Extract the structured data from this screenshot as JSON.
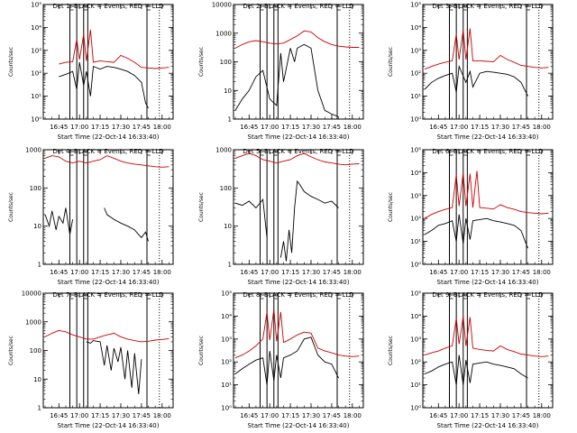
{
  "common": {
    "ylabel": "Counts/sec",
    "xlabel": "Start Time (22-Oct-14 16:33:40)",
    "x_ticks": [
      "16:45",
      "17:00",
      "17:15",
      "17:30",
      "17:45",
      "18:00"
    ],
    "series_colors": {
      "events": "#000000",
      "lld": "#cc0000"
    }
  },
  "chart_data": [
    {
      "type": "line",
      "title": "Det 1: BLACK = Events, RED = LLD",
      "ylog": true,
      "ylim": [
        1,
        100000
      ],
      "y_ticks": [
        "10⁰",
        "10¹",
        "10²",
        "10³",
        "10⁴",
        "10⁵"
      ],
      "y_tick_vals": [
        1,
        10,
        100,
        1000,
        10000,
        100000
      ],
      "series": [
        {
          "name": "Events",
          "x": [
            "16:45",
            "16:50",
            "16:55",
            "16:58",
            "17:00",
            "17:03",
            "17:05",
            "17:08",
            "17:10",
            "17:15",
            "17:20",
            "17:25",
            "17:30",
            "17:35",
            "17:40",
            "17:45",
            "17:48",
            "17:50"
          ],
          "values": [
            70,
            90,
            120,
            20,
            300,
            30,
            120,
            10,
            200,
            150,
            200,
            180,
            150,
            120,
            80,
            40,
            5,
            3
          ]
        },
        {
          "name": "LLD",
          "x": [
            "16:45",
            "16:50",
            "16:55",
            "16:58",
            "17:00",
            "17:03",
            "17:05",
            "17:08",
            "17:10",
            "17:15",
            "17:20",
            "17:25",
            "17:30",
            "17:35",
            "17:40",
            "17:45",
            "17:50",
            "17:55",
            "18:00",
            "18:05"
          ],
          "values": [
            250,
            300,
            320,
            3000,
            400,
            5000,
            350,
            8000,
            300,
            350,
            320,
            300,
            600,
            450,
            300,
            180,
            170,
            160,
            170,
            180
          ]
        }
      ]
    },
    {
      "type": "line",
      "title": "Det 2: BLACK = Events, RED = LLD",
      "ylog": true,
      "ylim": [
        1,
        10000
      ],
      "y_ticks": [
        "1",
        "10",
        "100",
        "1000",
        "10000"
      ],
      "y_tick_vals": [
        1,
        10,
        100,
        1000,
        10000
      ],
      "series": [
        {
          "name": "Events",
          "x": [
            "16:35",
            "16:40",
            "16:45",
            "16:50",
            "16:55",
            "17:00",
            "17:05",
            "17:08",
            "17:10",
            "17:15",
            "17:18",
            "17:20",
            "17:25",
            "17:30",
            "17:35",
            "17:40",
            "17:45",
            "17:50"
          ],
          "values": [
            2,
            5,
            10,
            30,
            50,
            5,
            3,
            200,
            20,
            300,
            100,
            300,
            400,
            300,
            10,
            2,
            1.5,
            1.2
          ]
        },
        {
          "name": "LLD",
          "x": [
            "16:35",
            "16:40",
            "16:45",
            "16:50",
            "16:55",
            "17:00",
            "17:05",
            "17:10",
            "17:15",
            "17:20",
            "17:25",
            "17:30",
            "17:35",
            "17:40",
            "17:45",
            "17:50",
            "17:55",
            "18:00",
            "18:05"
          ],
          "values": [
            300,
            400,
            500,
            550,
            500,
            450,
            420,
            450,
            600,
            800,
            1200,
            1100,
            700,
            500,
            400,
            350,
            330,
            320,
            320
          ]
        }
      ]
    },
    {
      "type": "line",
      "title": "Det 3: BLACK = Events, RED = LLD",
      "ylog": true,
      "ylim": [
        1,
        100000
      ],
      "y_ticks": [
        "10⁰",
        "10¹",
        "10²",
        "10³",
        "10⁴",
        "10⁵"
      ],
      "y_tick_vals": [
        1,
        10,
        100,
        1000,
        10000,
        100000
      ],
      "series": [
        {
          "name": "Events",
          "x": [
            "16:35",
            "16:40",
            "16:45",
            "16:50",
            "16:55",
            "16:58",
            "17:00",
            "17:05",
            "17:08",
            "17:10",
            "17:15",
            "17:20",
            "17:25",
            "17:30",
            "17:35",
            "17:40",
            "17:45",
            "17:50"
          ],
          "values": [
            20,
            40,
            60,
            80,
            100,
            15,
            200,
            40,
            120,
            25,
            100,
            120,
            110,
            100,
            90,
            70,
            40,
            10
          ]
        },
        {
          "name": "LLD",
          "x": [
            "16:35",
            "16:40",
            "16:45",
            "16:50",
            "16:55",
            "16:58",
            "17:00",
            "17:03",
            "17:05",
            "17:08",
            "17:10",
            "17:15",
            "17:20",
            "17:25",
            "17:30",
            "17:35",
            "17:40",
            "17:45",
            "17:50",
            "17:55",
            "18:00",
            "18:05"
          ],
          "values": [
            150,
            200,
            250,
            300,
            350,
            5000,
            400,
            8000,
            400,
            9000,
            350,
            350,
            330,
            320,
            600,
            400,
            300,
            220,
            200,
            180,
            170,
            180
          ]
        }
      ]
    },
    {
      "type": "line",
      "title": "Det 4: BLACK = Events, RED = LLD",
      "ylog": true,
      "ylim": [
        1,
        1000
      ],
      "y_ticks": [
        "1",
        "10",
        "100",
        "1000"
      ],
      "y_tick_vals": [
        1,
        10,
        100,
        1000
      ],
      "series": [
        {
          "name": "Events",
          "x": [
            "16:35",
            "16:38",
            "16:40",
            "16:43",
            "16:45",
            "16:48",
            "16:50",
            "16:53",
            "16:55"
          ],
          "values": [
            20,
            10,
            25,
            8,
            18,
            12,
            30,
            6,
            15
          ]
        },
        {
          "name": "Events",
          "x": [
            "17:18",
            "17:20",
            "17:25",
            "17:30",
            "17:35",
            "17:40",
            "17:43",
            "17:45",
            "17:48",
            "17:50"
          ],
          "values": [
            30,
            20,
            15,
            12,
            10,
            8,
            6,
            5,
            7,
            4
          ]
        },
        {
          "name": "LLD",
          "x": [
            "16:35",
            "16:40",
            "16:45",
            "16:50",
            "16:55",
            "17:00",
            "17:05",
            "17:10",
            "17:15",
            "17:20",
            "17:25",
            "17:30",
            "17:35",
            "17:40",
            "17:45",
            "17:50",
            "17:55",
            "18:00",
            "18:05"
          ],
          "values": [
            600,
            700,
            650,
            500,
            450,
            500,
            450,
            500,
            550,
            700,
            600,
            500,
            450,
            420,
            400,
            380,
            360,
            350,
            360
          ]
        }
      ]
    },
    {
      "type": "line",
      "title": "Det 5: BLACK = Events, RED = LLD",
      "ylog": true,
      "ylim": [
        1,
        1000
      ],
      "y_ticks": [
        "1",
        "10",
        "100",
        "1000"
      ],
      "y_tick_vals": [
        1,
        10,
        100,
        1000
      ],
      "series": [
        {
          "name": "Events",
          "x": [
            "16:35",
            "16:40",
            "16:45",
            "16:50",
            "16:55",
            "16:58"
          ],
          "values": [
            40,
            35,
            45,
            30,
            50,
            5
          ]
        },
        {
          "name": "Events",
          "x": [
            "17:08",
            "17:10",
            "17:12",
            "17:14",
            "17:16",
            "17:18",
            "17:20",
            "17:22",
            "17:25",
            "17:30",
            "17:35",
            "17:40",
            "17:45",
            "17:50"
          ],
          "values": [
            1.5,
            4,
            1.2,
            8,
            2,
            30,
            150,
            120,
            80,
            60,
            50,
            40,
            45,
            30
          ]
        },
        {
          "name": "LLD",
          "x": [
            "16:35",
            "16:40",
            "16:45",
            "16:50",
            "16:55",
            "17:00",
            "17:05",
            "17:10",
            "17:15",
            "17:20",
            "17:25",
            "17:30",
            "17:35",
            "17:40",
            "17:45",
            "17:50",
            "17:55",
            "18:00",
            "18:05"
          ],
          "values": [
            600,
            700,
            800,
            700,
            550,
            500,
            450,
            500,
            550,
            700,
            800,
            650,
            550,
            480,
            450,
            420,
            400,
            420,
            430
          ]
        }
      ]
    },
    {
      "type": "line",
      "title": "Det 6: BLACK = Events, RED = LLD",
      "ylog": true,
      "ylim": [
        1,
        100000
      ],
      "y_ticks": [
        "10⁰",
        "10¹",
        "10²",
        "10³",
        "10⁴",
        "10⁵"
      ],
      "y_tick_vals": [
        1,
        10,
        100,
        1000,
        10000,
        100000
      ],
      "series": [
        {
          "name": "Events",
          "x": [
            "16:35",
            "16:40",
            "16:45",
            "16:50",
            "16:55",
            "16:58",
            "17:00",
            "17:03",
            "17:05",
            "17:08",
            "17:10",
            "17:15",
            "17:20",
            "17:25",
            "17:30",
            "17:35",
            "17:40",
            "17:45",
            "17:50"
          ],
          "values": [
            20,
            30,
            50,
            60,
            80,
            10,
            150,
            8,
            100,
            12,
            80,
            90,
            100,
            80,
            70,
            60,
            50,
            30,
            5
          ]
        },
        {
          "name": "LLD",
          "x": [
            "16:35",
            "16:40",
            "16:45",
            "16:50",
            "16:55",
            "16:58",
            "17:00",
            "17:03",
            "17:05",
            "17:08",
            "17:10",
            "17:13",
            "17:15",
            "17:20",
            "17:25",
            "17:30",
            "17:35",
            "17:40",
            "17:45",
            "17:50",
            "17:55",
            "18:00",
            "18:05"
          ],
          "values": [
            100,
            150,
            200,
            250,
            300,
            8000,
            350,
            10000,
            350,
            9000,
            300,
            12000,
            300,
            280,
            260,
            400,
            300,
            250,
            200,
            180,
            170,
            160,
            170
          ]
        }
      ]
    },
    {
      "type": "line",
      "title": "Det 7: BLACK = Events, RED = LLD",
      "ylog": true,
      "ylim": [
        1,
        10000
      ],
      "y_ticks": [
        "1",
        "10",
        "100",
        "1000",
        "10000"
      ],
      "y_tick_vals": [
        1,
        10,
        100,
        1000,
        10000
      ],
      "series": [
        {
          "name": "Events",
          "x": [
            "17:05",
            "17:08",
            "17:10",
            "17:15",
            "17:18",
            "17:20",
            "17:23",
            "17:25",
            "17:28",
            "17:30",
            "17:33",
            "17:35",
            "17:38",
            "17:40",
            "17:43",
            "17:45"
          ],
          "values": [
            200,
            180,
            220,
            200,
            30,
            150,
            20,
            120,
            40,
            130,
            10,
            100,
            5,
            80,
            3,
            50
          ]
        },
        {
          "name": "LLD",
          "x": [
            "16:35",
            "16:40",
            "16:45",
            "16:50",
            "16:55",
            "17:00",
            "17:05",
            "17:10",
            "17:15",
            "17:20",
            "17:25",
            "17:30",
            "17:35",
            "17:40",
            "17:45",
            "17:50",
            "17:55",
            "18:00",
            "18:05"
          ],
          "values": [
            300,
            400,
            500,
            450,
            350,
            300,
            250,
            250,
            300,
            350,
            400,
            300,
            250,
            220,
            200,
            210,
            230,
            240,
            260
          ]
        }
      ]
    },
    {
      "type": "line",
      "title": "Det 8: BLACK = Events, RED = LLD",
      "ylog": true,
      "ylim": [
        1,
        100000
      ],
      "y_ticks": [
        "10⁰",
        "10¹",
        "10²",
        "10³",
        "10⁴",
        "10⁵"
      ],
      "y_tick_vals": [
        1,
        10,
        100,
        1000,
        10000,
        100000
      ],
      "series": [
        {
          "name": "Events",
          "x": [
            "16:35",
            "16:40",
            "16:45",
            "16:50",
            "16:55",
            "16:58",
            "17:00",
            "17:03",
            "17:05",
            "17:08",
            "17:10",
            "17:15",
            "17:20",
            "17:25",
            "17:30",
            "17:35",
            "17:40",
            "17:45",
            "17:50"
          ],
          "values": [
            30,
            50,
            80,
            120,
            150,
            10,
            300,
            15,
            200,
            20,
            150,
            200,
            300,
            1000,
            1200,
            200,
            100,
            80,
            20
          ]
        },
        {
          "name": "LLD",
          "x": [
            "16:35",
            "16:40",
            "16:45",
            "16:50",
            "16:55",
            "16:58",
            "17:00",
            "17:03",
            "17:05",
            "17:08",
            "17:10",
            "17:15",
            "17:20",
            "17:25",
            "17:30",
            "17:35",
            "17:40",
            "17:45",
            "17:50",
            "17:55",
            "18:00",
            "18:05"
          ],
          "values": [
            150,
            200,
            300,
            500,
            1000,
            15000,
            900,
            20000,
            800,
            15000,
            700,
            1000,
            1500,
            2000,
            1800,
            400,
            300,
            250,
            200,
            180,
            170,
            180
          ]
        }
      ]
    },
    {
      "type": "line",
      "title": "Det 9: BLACK = Events, RED = LLD",
      "ylog": true,
      "ylim": [
        1,
        100000
      ],
      "y_ticks": [
        "10⁰",
        "10¹",
        "10²",
        "10³",
        "10⁴",
        "10⁵"
      ],
      "y_tick_vals": [
        1,
        10,
        100,
        1000,
        10000,
        100000
      ],
      "series": [
        {
          "name": "Events",
          "x": [
            "16:35",
            "16:40",
            "16:45",
            "16:50",
            "16:55",
            "16:58",
            "17:00",
            "17:03",
            "17:05",
            "17:08",
            "17:10",
            "17:15",
            "17:20",
            "17:25",
            "17:30",
            "17:35",
            "17:40",
            "17:45",
            "17:50"
          ],
          "values": [
            30,
            40,
            60,
            80,
            100,
            10,
            200,
            10,
            120,
            12,
            80,
            90,
            100,
            80,
            70,
            60,
            50,
            30,
            20
          ]
        },
        {
          "name": "LLD",
          "x": [
            "16:35",
            "16:40",
            "16:45",
            "16:50",
            "16:55",
            "16:58",
            "17:00",
            "17:03",
            "17:05",
            "17:08",
            "17:10",
            "17:15",
            "17:20",
            "17:25",
            "17:30",
            "17:35",
            "17:40",
            "17:45",
            "17:50",
            "17:55",
            "18:00",
            "18:05"
          ],
          "values": [
            200,
            250,
            300,
            400,
            500,
            8000,
            600,
            10000,
            500,
            9000,
            400,
            350,
            320,
            300,
            500,
            350,
            280,
            220,
            200,
            180,
            170,
            180
          ]
        }
      ]
    }
  ]
}
